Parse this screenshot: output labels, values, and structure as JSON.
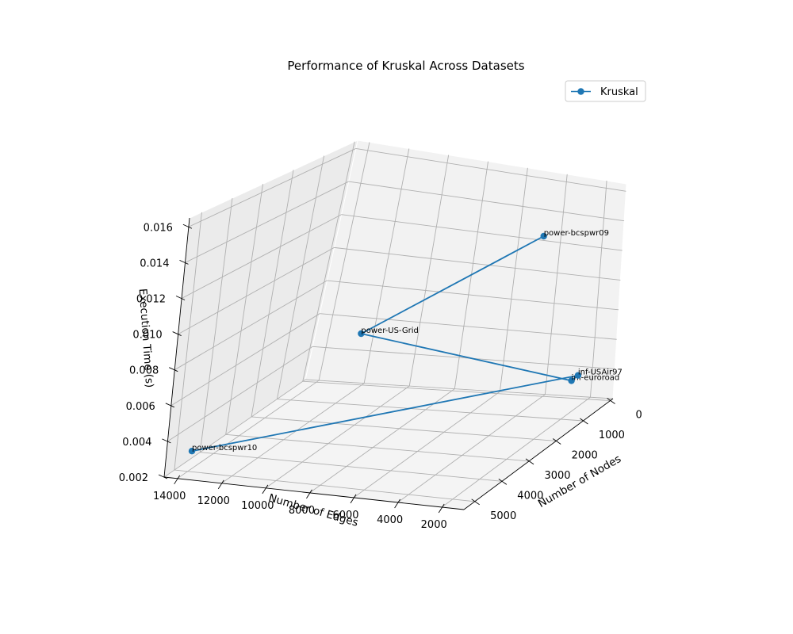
{
  "chart_data": {
    "type": "line",
    "subtype": "3d-line",
    "title": "Performance of Kruskal Across Datasets",
    "xlabel": "Number of Nodes",
    "ylabel": "Number of Edges",
    "zlabel": "Execution Time (s)",
    "xlim": [
      -100,
      5400
    ],
    "ylim": [
      1000,
      14600
    ],
    "zlim": [
      0.002,
      0.0165
    ],
    "x_ticks": [
      0,
      1000,
      2000,
      3000,
      4000,
      5000
    ],
    "y_ticks": [
      2000,
      4000,
      6000,
      8000,
      10000,
      12000,
      14000
    ],
    "z_ticks": [
      0.002,
      0.004,
      0.006,
      0.008,
      0.01,
      0.012,
      0.014,
      0.016
    ],
    "x_tick_labels": [
      "0",
      "1000",
      "2000",
      "3000",
      "4000",
      "5000"
    ],
    "y_tick_labels": [
      "2000",
      "4000",
      "6000",
      "8000",
      "10000",
      "12000",
      "14000"
    ],
    "z_tick_labels": [
      "0.002",
      "0.004",
      "0.006",
      "0.008",
      "0.010",
      "0.012",
      "0.014",
      "0.016"
    ],
    "grid": true,
    "legend_position": "top-right",
    "series": [
      {
        "name": "Kruskal",
        "color": "#1f77b4",
        "marker": "circle",
        "points": [
          {
            "label": "power-bcspwr09",
            "x": 1720,
            "y": 2400,
            "z": 0.0146
          },
          {
            "label": "power-US-Grid",
            "x": 4940,
            "y": 6590,
            "z": 0.011
          },
          {
            "label": "inf-euroroad",
            "x": 1170,
            "y": 1420,
            "z": 0.0048
          },
          {
            "label": "inf-USAir97",
            "x": 330,
            "y": 2130,
            "z": 0.004
          },
          {
            "label": "power-bcspwr10",
            "x": 5300,
            "y": 13570,
            "z": 0.0035
          }
        ]
      }
    ]
  }
}
